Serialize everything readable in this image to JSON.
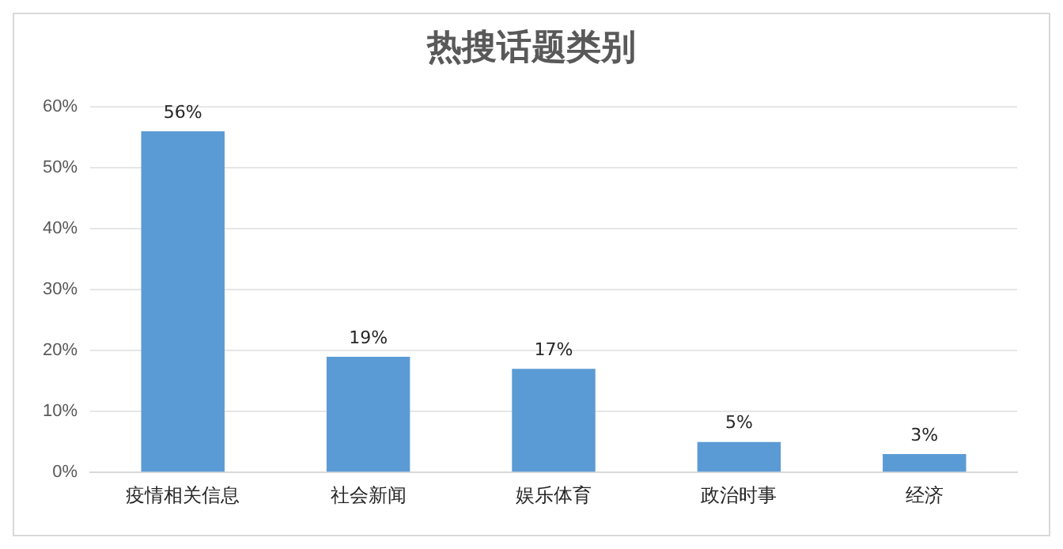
{
  "chart_data": {
    "type": "bar",
    "title": "热搜话题类别",
    "categories": [
      "疫情相关信息",
      "社会新闻",
      "娱乐体育",
      "政治时事",
      "经济"
    ],
    "values": [
      56,
      19,
      17,
      5,
      3
    ],
    "value_labels": [
      "56%",
      "19%",
      "17%",
      "5%",
      "3%"
    ],
    "color": "#5b9bd5",
    "ylim": [
      0,
      60
    ],
    "yticks": [
      {
        "value": 0,
        "label": "0%"
      },
      {
        "value": 10,
        "label": "10%"
      },
      {
        "value": 20,
        "label": "20%"
      },
      {
        "value": 30,
        "label": "30%"
      },
      {
        "value": 40,
        "label": "40%"
      },
      {
        "value": 50,
        "label": "50%"
      },
      {
        "value": 60,
        "label": "60%"
      }
    ],
    "grid": "y"
  }
}
